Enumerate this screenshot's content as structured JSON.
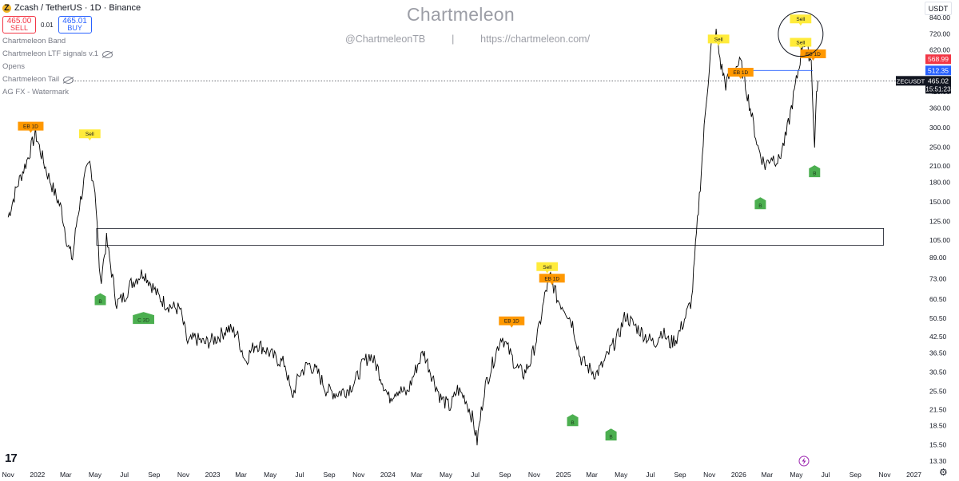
{
  "legend": {
    "symbol": "Zcash / TetherUS · 1D · Binance",
    "coin_icon": "zcash-coin-icon",
    "sell_price": "465.00",
    "sell_label": "SELL",
    "spread": "0.01",
    "buy_price": "465.01",
    "buy_label": "BUY",
    "indicators": [
      {
        "name": "Chartmeleon Band",
        "hidden": false
      },
      {
        "name": "Chartmeleon LTF signals v.1",
        "hidden": true
      },
      {
        "name": "Opens",
        "hidden": false
      },
      {
        "name": "Chartmeleon Tail",
        "hidden": true
      },
      {
        "name": "AG FX - Watermark",
        "hidden": false
      }
    ]
  },
  "watermark": {
    "title": "Chartmeleon",
    "handle": "@ChartmeleonTB",
    "separator": "|",
    "url": "https://chartmeleon.com/"
  },
  "currency": "USDT",
  "colors": {
    "candles": "#000000",
    "sell_signal": "#ffeb3b",
    "orange_signal": "#ff9800",
    "buy_signal": "#4caf50",
    "red_label": "#f23645",
    "blue_label": "#2962ff"
  },
  "chart_data": {
    "type": "line",
    "scale": "log",
    "ylim": [
      13.3,
      840
    ],
    "y_ticks": [
      "840.00",
      "720.00",
      "620.00",
      "520.00",
      "420.00",
      "360.00",
      "300.00",
      "250.00",
      "210.00",
      "180.00",
      "150.00",
      "125.00",
      "105.00",
      "89.00",
      "73.00",
      "60.50",
      "50.50",
      "42.50",
      "36.50",
      "30.50",
      "25.50",
      "21.50",
      "18.50",
      "15.50",
      "13.30"
    ],
    "x_ticks": [
      "Nov",
      "2022",
      "Mar",
      "May",
      "Jul",
      "Sep",
      "Nov",
      "2023",
      "Mar",
      "May",
      "Jul",
      "Sep",
      "Nov",
      "2024",
      "Mar",
      "May",
      "Jul",
      "Sep",
      "Nov",
      "2025",
      "Mar",
      "May",
      "Jul",
      "Sep",
      "Nov",
      "2026",
      "Mar",
      "May",
      "Jul",
      "Sep",
      "Nov",
      "2027"
    ],
    "series": [
      {
        "points": [
          [
            "2021-11-01",
            130
          ],
          [
            "2021-11-20",
            175
          ],
          [
            "2021-12-10",
            220
          ],
          [
            "2021-12-28",
            285
          ],
          [
            "2022-01-05",
            250
          ],
          [
            "2022-01-20",
            200
          ],
          [
            "2022-02-05",
            165
          ],
          [
            "2022-02-20",
            140
          ],
          [
            "2022-03-05",
            100
          ],
          [
            "2022-03-15",
            88
          ],
          [
            "2022-03-25",
            130
          ],
          [
            "2022-04-10",
            190
          ],
          [
            "2022-04-20",
            215
          ],
          [
            "2022-05-01",
            170
          ],
          [
            "2022-05-12",
            70
          ],
          [
            "2022-05-25",
            105
          ],
          [
            "2022-06-15",
            58
          ],
          [
            "2022-07-01",
            62
          ],
          [
            "2022-07-15",
            70
          ],
          [
            "2022-08-10",
            78
          ],
          [
            "2022-08-25",
            70
          ],
          [
            "2022-09-10",
            62
          ],
          [
            "2022-09-25",
            58
          ],
          [
            "2022-10-10",
            56
          ],
          [
            "2022-10-25",
            55
          ],
          [
            "2022-11-10",
            40
          ],
          [
            "2022-11-25",
            42
          ],
          [
            "2022-12-15",
            40
          ],
          [
            "2023-01-10",
            42
          ],
          [
            "2023-02-01",
            46
          ],
          [
            "2023-02-20",
            44
          ],
          [
            "2023-03-10",
            34
          ],
          [
            "2023-04-01",
            40
          ],
          [
            "2023-04-20",
            38
          ],
          [
            "2023-05-10",
            35
          ],
          [
            "2023-06-01",
            33
          ],
          [
            "2023-06-15",
            24
          ],
          [
            "2023-07-01",
            30
          ],
          [
            "2023-07-20",
            33
          ],
          [
            "2023-08-10",
            30
          ],
          [
            "2023-08-25",
            26
          ],
          [
            "2023-09-15",
            25
          ],
          [
            "2023-10-10",
            26
          ],
          [
            "2023-10-25",
            28
          ],
          [
            "2023-11-10",
            33
          ],
          [
            "2023-11-25",
            36
          ],
          [
            "2023-12-10",
            32
          ],
          [
            "2024-01-03",
            24
          ],
          [
            "2024-01-20",
            26
          ],
          [
            "2024-02-10",
            25
          ],
          [
            "2024-03-01",
            32
          ],
          [
            "2024-03-15",
            37
          ],
          [
            "2024-04-01",
            30
          ],
          [
            "2024-04-20",
            24
          ],
          [
            "2024-05-10",
            22
          ],
          [
            "2024-05-25",
            26
          ],
          [
            "2024-06-10",
            24
          ],
          [
            "2024-06-25",
            20
          ],
          [
            "2024-07-05",
            16
          ],
          [
            "2024-07-20",
            26
          ],
          [
            "2024-08-10",
            35
          ],
          [
            "2024-08-25",
            43
          ],
          [
            "2024-09-10",
            37
          ],
          [
            "2024-09-25",
            32
          ],
          [
            "2024-10-10",
            30
          ],
          [
            "2024-10-25",
            34
          ],
          [
            "2024-11-10",
            45
          ],
          [
            "2024-11-25",
            65
          ],
          [
            "2024-12-05",
            75
          ],
          [
            "2024-12-20",
            60
          ],
          [
            "2025-01-05",
            55
          ],
          [
            "2025-01-20",
            48
          ],
          [
            "2025-02-05",
            35
          ],
          [
            "2025-02-20",
            32
          ],
          [
            "2025-03-10",
            30
          ],
          [
            "2025-03-25",
            33
          ],
          [
            "2025-04-10",
            38
          ],
          [
            "2025-04-25",
            43
          ],
          [
            "2025-05-10",
            52
          ],
          [
            "2025-05-25",
            48
          ],
          [
            "2025-06-10",
            45
          ],
          [
            "2025-06-25",
            42
          ],
          [
            "2025-07-10",
            40
          ],
          [
            "2025-07-25",
            45
          ],
          [
            "2025-08-10",
            40
          ],
          [
            "2025-08-25",
            42
          ],
          [
            "2025-09-10",
            50
          ],
          [
            "2025-09-25",
            60
          ],
          [
            "2025-10-05",
            110
          ],
          [
            "2025-10-15",
            200
          ],
          [
            "2025-10-25",
            380
          ],
          [
            "2025-11-05",
            650
          ],
          [
            "2025-11-15",
            720
          ],
          [
            "2025-11-25",
            540
          ],
          [
            "2025-12-05",
            450
          ],
          [
            "2025-12-20",
            520
          ],
          [
            "2026-01-05",
            550
          ],
          [
            "2026-01-15",
            450
          ],
          [
            "2026-01-25",
            360
          ],
          [
            "2026-02-10",
            250
          ],
          [
            "2026-02-25",
            210
          ],
          [
            "2026-03-10",
            230
          ],
          [
            "2026-03-25",
            220
          ],
          [
            "2026-04-10",
            280
          ],
          [
            "2026-04-25",
            400
          ],
          [
            "2026-05-05",
            510
          ],
          [
            "2026-05-15",
            680
          ],
          [
            "2026-05-25",
            620
          ],
          [
            "2026-06-01",
            560
          ],
          [
            "2026-06-08",
            250
          ],
          [
            "2026-06-12",
            420
          ],
          [
            "2026-06-15",
            465
          ]
        ]
      }
    ],
    "price_tags": [
      {
        "value": 568.99,
        "label": "568.99",
        "color": "#f23645"
      },
      {
        "value": 512.35,
        "label": "512.35",
        "color": "#2962ff"
      }
    ],
    "last_price": {
      "symbol": "ZECUSDT",
      "value": 465.02,
      "label": "465.02",
      "countdown": "15:51:23"
    },
    "zone": {
      "from": "2022-05-01",
      "to": "2027-01-01",
      "low": 100,
      "high": 117
    },
    "signals": [
      {
        "kind": "orange",
        "text": "EB 1D",
        "date": "2021-12-18",
        "value": 290
      },
      {
        "kind": "yellow",
        "text": "Sell",
        "date": "2022-04-20",
        "value": 270
      },
      {
        "kind": "green",
        "text": "B",
        "date": "2022-05-12",
        "value": 62
      },
      {
        "kind": "green",
        "text": "C 3D",
        "date": "2022-08-10",
        "value": 52
      },
      {
        "kind": "orange",
        "text": "EB 1D",
        "date": "2024-09-15",
        "value": 47
      },
      {
        "kind": "yellow",
        "text": "Sell",
        "date": "2024-11-28",
        "value": 78
      },
      {
        "kind": "orange",
        "text": "EB 1D",
        "date": "2024-12-08",
        "value": 70
      },
      {
        "kind": "green",
        "text": "B",
        "date": "2025-01-20",
        "value": 20
      },
      {
        "kind": "green",
        "text": "B",
        "date": "2025-04-10",
        "value": 17.5
      },
      {
        "kind": "yellow",
        "text": "Sell",
        "date": "2025-11-20",
        "value": 655
      },
      {
        "kind": "orange",
        "text": "EB 1D",
        "date": "2026-01-05",
        "value": 480
      },
      {
        "kind": "green",
        "text": "B",
        "date": "2026-02-15",
        "value": 152
      },
      {
        "kind": "yellow",
        "text": "Sell",
        "date": "2026-05-10",
        "value": 790
      },
      {
        "kind": "yellow",
        "text": "Sell",
        "date": "2026-05-10",
        "value": 635
      },
      {
        "kind": "orange",
        "text": "EB 1D",
        "date": "2026-06-05",
        "value": 570
      },
      {
        "kind": "green",
        "text": "B",
        "date": "2026-06-08",
        "value": 205
      }
    ],
    "grid": false
  }
}
